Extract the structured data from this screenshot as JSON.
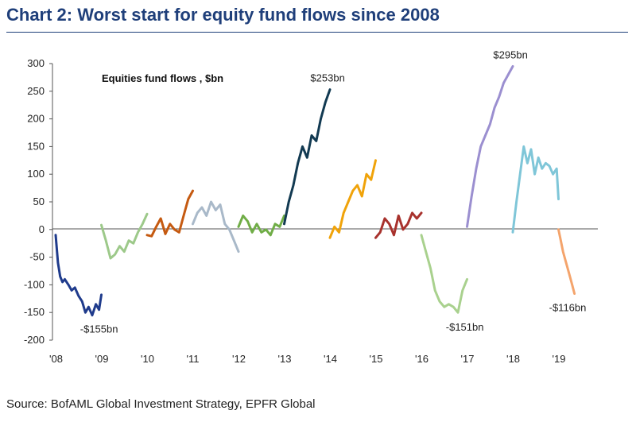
{
  "header": {
    "title": "Chart 2: Worst start for equity fund flows since 2008"
  },
  "footer": {
    "source": "Source: BofAML Global Investment Strategy, EPFR Global"
  },
  "chart_data": {
    "type": "line",
    "title": "Equities fund flows , $bn",
    "xlabel": "",
    "ylabel": "",
    "xlim": [
      2008,
      2020
    ],
    "ylim": [
      -200,
      300
    ],
    "yticks": [
      300,
      250,
      200,
      150,
      100,
      50,
      0,
      -50,
      -100,
      -150,
      -200
    ],
    "xtick_labels": [
      "'08",
      "'09",
      "'10",
      "'11",
      "'12",
      "'13",
      "'14",
      "'15",
      "'16",
      "'17",
      "'18",
      "'19"
    ],
    "grid": false,
    "annotations": [
      {
        "text": "$253bn",
        "x": 2013.95,
        "y": 253
      },
      {
        "text": "$295bn",
        "x": 2017.95,
        "y": 295
      },
      {
        "text": "-$155bn",
        "x": 2008.95,
        "y": -155
      },
      {
        "text": "-$151bn",
        "x": 2016.95,
        "y": -151
      },
      {
        "text": "-$116bn",
        "x": 2019.2,
        "y": -116
      }
    ],
    "series": [
      {
        "color": "#1f3b8c",
        "x": [
          2008.0,
          2008.05,
          2008.1,
          2008.15,
          2008.2,
          2008.28,
          2008.35,
          2008.42,
          2008.5,
          2008.58,
          2008.65,
          2008.72,
          2008.8,
          2008.88,
          2008.95,
          2009.0
        ],
        "y": [
          -10,
          -60,
          -85,
          -95,
          -90,
          -100,
          -110,
          -105,
          -120,
          -130,
          -150,
          -140,
          -155,
          -135,
          -145,
          -118
        ]
      },
      {
        "color": "#9dc98a",
        "x": [
          2009.0,
          2009.1,
          2009.2,
          2009.3,
          2009.4,
          2009.5,
          2009.6,
          2009.7,
          2009.8,
          2009.9,
          2010.0
        ],
        "y": [
          8,
          -20,
          -52,
          -45,
          -30,
          -40,
          -20,
          -25,
          -5,
          10,
          28
        ]
      },
      {
        "color": "#c55a11",
        "x": [
          2010.0,
          2010.1,
          2010.2,
          2010.3,
          2010.4,
          2010.5,
          2010.6,
          2010.7,
          2010.8,
          2010.9,
          2011.0
        ],
        "y": [
          -10,
          -12,
          5,
          20,
          -8,
          10,
          0,
          -5,
          25,
          55,
          70
        ]
      },
      {
        "color": "#a9b9c9",
        "x": [
          2011.0,
          2011.1,
          2011.2,
          2011.3,
          2011.4,
          2011.5,
          2011.6,
          2011.7,
          2011.8,
          2011.9,
          2012.0
        ],
        "y": [
          10,
          30,
          40,
          25,
          50,
          35,
          45,
          10,
          0,
          -20,
          -40
        ]
      },
      {
        "color": "#70ad47",
        "x": [
          2012.0,
          2012.1,
          2012.2,
          2012.3,
          2012.4,
          2012.5,
          2012.6,
          2012.7,
          2012.8,
          2012.9,
          2013.0
        ],
        "y": [
          5,
          25,
          15,
          -5,
          10,
          -5,
          0,
          -10,
          10,
          5,
          25
        ]
      },
      {
        "color": "#123a52",
        "x": [
          2013.0,
          2013.1,
          2013.2,
          2013.3,
          2013.4,
          2013.5,
          2013.6,
          2013.7,
          2013.8,
          2013.9,
          2014.0
        ],
        "y": [
          10,
          50,
          80,
          120,
          150,
          130,
          170,
          160,
          200,
          230,
          253
        ]
      },
      {
        "color": "#f0a30a",
        "x": [
          2014.0,
          2014.1,
          2014.2,
          2014.3,
          2014.4,
          2014.5,
          2014.6,
          2014.7,
          2014.8,
          2014.9,
          2015.0
        ],
        "y": [
          -15,
          5,
          -5,
          30,
          50,
          70,
          80,
          60,
          100,
          90,
          125
        ]
      },
      {
        "color": "#a8322d",
        "x": [
          2015.0,
          2015.1,
          2015.2,
          2015.3,
          2015.4,
          2015.5,
          2015.6,
          2015.7,
          2015.8,
          2015.9,
          2016.0
        ],
        "y": [
          -15,
          -5,
          20,
          10,
          -10,
          25,
          0,
          10,
          30,
          20,
          30
        ]
      },
      {
        "color": "#a9d18e",
        "x": [
          2016.0,
          2016.1,
          2016.2,
          2016.3,
          2016.4,
          2016.5,
          2016.6,
          2016.7,
          2016.8,
          2016.9,
          2017.0
        ],
        "y": [
          -10,
          -40,
          -70,
          -110,
          -130,
          -140,
          -135,
          -140,
          -150,
          -110,
          -90
        ]
      },
      {
        "color": "#9b8fd0",
        "x": [
          2017.0,
          2017.1,
          2017.2,
          2017.3,
          2017.4,
          2017.5,
          2017.6,
          2017.7,
          2017.8,
          2017.9,
          2018.0
        ],
        "y": [
          5,
          60,
          110,
          150,
          170,
          190,
          220,
          240,
          265,
          280,
          295
        ]
      },
      {
        "color": "#7fc6d8",
        "x": [
          2018.0,
          2018.08,
          2018.16,
          2018.24,
          2018.32,
          2018.4,
          2018.48,
          2018.56,
          2018.64,
          2018.72,
          2018.8,
          2018.88,
          2018.96,
          2019.0
        ],
        "y": [
          -5,
          50,
          100,
          150,
          120,
          145,
          100,
          130,
          110,
          120,
          115,
          100,
          110,
          55
        ]
      },
      {
        "color": "#f4a46c",
        "x": [
          2019.0,
          2019.05,
          2019.1,
          2019.15,
          2019.2,
          2019.25,
          2019.3,
          2019.35
        ],
        "y": [
          0,
          -20,
          -40,
          -55,
          -70,
          -85,
          -100,
          -116
        ]
      }
    ]
  }
}
